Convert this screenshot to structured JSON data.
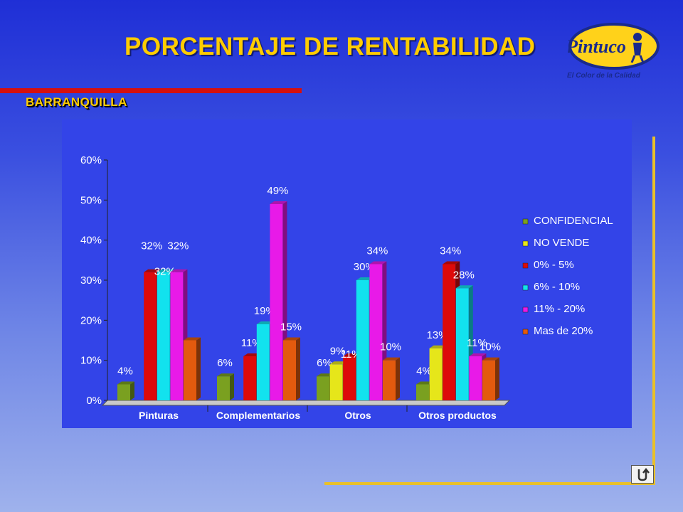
{
  "header": {
    "title": "PORCENTAJE DE RENTABILIDAD",
    "subtitle": "BARRANQUILLA",
    "logo_text": "Pintuco",
    "slogan": "El Color de la Calidad"
  },
  "colors": {
    "title": "#ffcc00",
    "accent_bar": "#d41010",
    "frame_lines": "#e8c02a",
    "chart_background": "#3344e8"
  },
  "icons": {
    "return_button": "undo-icon"
  },
  "chart_data": {
    "type": "bar",
    "categories": [
      "Pinturas",
      "Complementarios",
      "Otros",
      "Otros productos"
    ],
    "series": [
      {
        "name": "CONFIDENCIAL",
        "color": "#7aa020",
        "values": [
          4,
          6,
          6,
          4
        ]
      },
      {
        "name": "NO VENDE",
        "color": "#e6e61a",
        "values": [
          0,
          0,
          9,
          13
        ]
      },
      {
        "name": "0% - 5%",
        "color": "#dd0a0a",
        "values": [
          32,
          11,
          11,
          34
        ]
      },
      {
        "name": "6% - 10%",
        "color": "#12e2ee",
        "values": [
          32,
          19,
          30,
          28
        ]
      },
      {
        "name": "11% - 20%",
        "color": "#e81ae8",
        "values": [
          32,
          49,
          34,
          11
        ]
      },
      {
        "name": "Mas de 20%",
        "color": "#e35a0e",
        "values": [
          15,
          15,
          10,
          10
        ]
      }
    ],
    "data_labels": [
      [
        "4%",
        "",
        "32%",
        "32%",
        "32%",
        ""
      ],
      [
        "6%",
        "",
        "11%",
        "19%",
        "49%",
        "15%"
      ],
      [
        "6%",
        "9%",
        "11%",
        "30%",
        "34%",
        "10%"
      ],
      [
        "4%",
        "13%",
        "34%",
        "28%",
        "11%",
        "10%"
      ]
    ],
    "y_ticks": [
      "0%",
      "10%",
      "20%",
      "30%",
      "40%",
      "50%",
      "60%"
    ],
    "ylim": [
      0,
      60
    ],
    "legend_position": "right",
    "xlabel": "",
    "ylabel": ""
  }
}
